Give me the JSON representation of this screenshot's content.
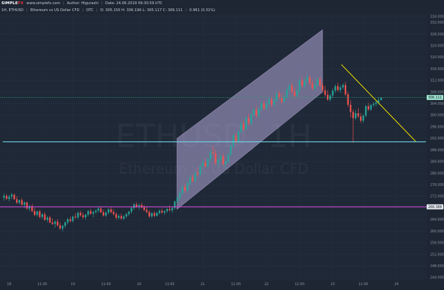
{
  "header": {
    "logo_main": "SIMPLE",
    "logo_fx": "FX",
    "site": "www.simplefx.com",
    "author": "Author: Higurashi",
    "date": "Date: 24.06.2019 09:30:59 UTC"
  },
  "infobar": {
    "timeframe": "1H, ETHUSD",
    "description": "Ethereum vs US Dollar CFD",
    "feed": "OTC",
    "ohlc": "O: 305.150 H: 306.196 L: 305.117 C: 306.111",
    "change": "0.961 (0.31%)"
  },
  "watermark": {
    "symbol": "ETHUSD, 1H",
    "name": "Ethereum vs US Dollar CFD"
  },
  "price_tags": {
    "current": "306.111",
    "support": "268.388"
  },
  "colors": {
    "background": "#1e2633",
    "up_candle": "#26a69a",
    "down_candle": "#ef5350",
    "channel_fill": "#b3a8d9",
    "cyan_line": "#6fd6e9",
    "magenta_line": "#d24cdb",
    "yellow_trendline": "#f2e600",
    "current_price_line": "#2aa37a"
  },
  "chart_data": {
    "type": "candlestick",
    "title": "",
    "symbol": "ETHUSD",
    "timeframe": "1H",
    "y_range": [
      244.0,
      334.0
    ],
    "y_ticks": [
      "334.000",
      "332.000",
      "328.000",
      "324.000",
      "320.000",
      "316.000",
      "312.000",
      "308.000",
      "304.000",
      "300.000",
      "296.000",
      "292.000",
      "288.000",
      "284.000",
      "280.000",
      "276.000",
      "272.000",
      "268.000",
      "264.000",
      "260.000",
      "256.000",
      "252.000",
      "248.000",
      "244.000"
    ],
    "x_ticks": [
      "18",
      "11:00",
      "19",
      "11:00",
      "20",
      "11:00",
      "21",
      "11:00",
      "22",
      "11:00",
      "23",
      "11:00",
      "24"
    ],
    "price_levels": [
      {
        "name": "current price",
        "value": 306.111
      },
      {
        "name": "support",
        "value": 268.388
      },
      {
        "name": "resistance",
        "value": 290.8
      }
    ],
    "channel": {
      "lower_start": 267.5,
      "lower_end": 308.0,
      "upper_start": 292.0,
      "upper_end": 329.5
    },
    "trendline": {
      "start": 317.5,
      "end": 291.0
    },
    "ohlc": [
      [
        271.5,
        273.0,
        270.5,
        272.2
      ],
      [
        272.2,
        272.8,
        270.9,
        271.1
      ],
      [
        271.1,
        272.5,
        270.3,
        271.9
      ],
      [
        271.9,
        273.2,
        271.0,
        272.6
      ],
      [
        272.6,
        273.0,
        270.8,
        271.0
      ],
      [
        271.0,
        272.1,
        269.4,
        269.8
      ],
      [
        269.8,
        271.0,
        269.2,
        270.7
      ],
      [
        270.7,
        271.4,
        268.8,
        269.1
      ],
      [
        269.1,
        270.3,
        268.0,
        269.9
      ],
      [
        269.9,
        270.2,
        267.3,
        267.8
      ],
      [
        267.8,
        269.1,
        266.9,
        268.6
      ],
      [
        268.6,
        269.4,
        266.5,
        266.9
      ],
      [
        266.9,
        268.0,
        265.2,
        265.6
      ],
      [
        265.6,
        267.1,
        265.0,
        266.8
      ],
      [
        266.8,
        267.4,
        264.4,
        264.9
      ],
      [
        264.9,
        266.3,
        264.2,
        265.8
      ],
      [
        265.8,
        266.6,
        263.5,
        263.9
      ],
      [
        263.9,
        265.2,
        263.1,
        264.7
      ],
      [
        264.7,
        265.3,
        262.6,
        263.0
      ],
      [
        263.0,
        264.4,
        262.1,
        262.5
      ],
      [
        262.5,
        263.7,
        261.2,
        263.3
      ],
      [
        263.3,
        264.1,
        261.5,
        262.0
      ],
      [
        262.0,
        263.0,
        260.4,
        260.9
      ],
      [
        260.9,
        262.2,
        259.9,
        261.8
      ],
      [
        261.8,
        263.4,
        261.1,
        263.0
      ],
      [
        263.0,
        264.6,
        262.4,
        264.1
      ],
      [
        264.1,
        265.0,
        263.0,
        263.5
      ],
      [
        263.5,
        265.4,
        263.0,
        265.0
      ],
      [
        265.0,
        266.2,
        264.3,
        264.7
      ],
      [
        264.7,
        266.8,
        264.1,
        266.3
      ],
      [
        266.3,
        267.1,
        265.0,
        265.5
      ],
      [
        265.5,
        266.4,
        264.2,
        264.8
      ],
      [
        264.8,
        266.0,
        264.0,
        265.7
      ],
      [
        265.7,
        267.3,
        265.1,
        266.9
      ],
      [
        266.9,
        267.7,
        265.6,
        266.0
      ],
      [
        266.0,
        267.0,
        264.8,
        266.6
      ],
      [
        266.6,
        267.5,
        265.9,
        267.1
      ],
      [
        267.1,
        268.3,
        266.4,
        267.8
      ],
      [
        267.8,
        268.6,
        266.2,
        266.5
      ],
      [
        266.5,
        267.4,
        265.0,
        265.4
      ],
      [
        265.4,
        266.8,
        264.9,
        266.4
      ],
      [
        266.4,
        267.9,
        265.8,
        267.5
      ],
      [
        267.5,
        268.2,
        266.1,
        266.6
      ],
      [
        266.6,
        267.6,
        265.4,
        265.9
      ],
      [
        265.9,
        266.5,
        264.0,
        264.6
      ],
      [
        264.6,
        265.8,
        264.0,
        265.2
      ],
      [
        265.2,
        266.0,
        263.9,
        264.3
      ],
      [
        264.3,
        265.6,
        263.8,
        265.1
      ],
      [
        265.1,
        266.3,
        264.5,
        265.9
      ],
      [
        265.9,
        267.0,
        265.2,
        266.7
      ],
      [
        266.7,
        268.5,
        266.0,
        268.0
      ],
      [
        268.0,
        269.8,
        267.3,
        269.2
      ],
      [
        269.2,
        270.0,
        267.9,
        268.4
      ],
      [
        268.4,
        269.5,
        267.4,
        269.0
      ],
      [
        269.0,
        269.9,
        267.9,
        268.2
      ],
      [
        268.2,
        269.0,
        266.8,
        267.3
      ],
      [
        267.3,
        268.4,
        266.1,
        266.6
      ],
      [
        266.6,
        267.2,
        264.6,
        265.1
      ],
      [
        265.1,
        266.6,
        264.5,
        266.2
      ],
      [
        266.2,
        266.9,
        264.8,
        265.3
      ],
      [
        265.3,
        266.7,
        264.9,
        266.3
      ],
      [
        266.3,
        267.5,
        265.7,
        267.0
      ],
      [
        267.0,
        267.8,
        266.0,
        266.4
      ],
      [
        266.4,
        267.2,
        265.6,
        266.9
      ],
      [
        266.9,
        268.1,
        266.3,
        267.6
      ],
      [
        267.6,
        268.8,
        266.8,
        267.2
      ],
      [
        267.2,
        268.2,
        266.3,
        268.0
      ],
      [
        268.0,
        270.6,
        267.5,
        270.2
      ],
      [
        270.2,
        272.0,
        269.4,
        271.5
      ],
      [
        271.5,
        273.6,
        270.8,
        273.2
      ],
      [
        273.2,
        275.8,
        272.5,
        275.3
      ],
      [
        275.3,
        276.4,
        273.2,
        273.9
      ],
      [
        273.9,
        276.9,
        273.2,
        276.5
      ],
      [
        276.5,
        279.2,
        275.8,
        278.6
      ],
      [
        278.6,
        279.5,
        276.8,
        277.3
      ],
      [
        277.3,
        280.5,
        276.9,
        280.0
      ],
      [
        280.0,
        281.9,
        278.9,
        279.5
      ],
      [
        279.5,
        283.0,
        278.8,
        282.4
      ],
      [
        282.4,
        284.6,
        281.3,
        283.7
      ],
      [
        283.7,
        285.0,
        281.9,
        282.3
      ],
      [
        282.3,
        285.5,
        281.5,
        284.9
      ],
      [
        284.9,
        287.9,
        284.0,
        287.2
      ],
      [
        287.2,
        289.4,
        286.2,
        286.8
      ],
      [
        286.8,
        288.1,
        282.7,
        283.5
      ],
      [
        283.5,
        285.2,
        282.0,
        284.6
      ],
      [
        284.6,
        286.4,
        283.6,
        285.8
      ],
      [
        285.8,
        286.9,
        282.8,
        283.1
      ],
      [
        283.1,
        284.5,
        281.6,
        284.0
      ],
      [
        284.0,
        286.9,
        283.3,
        286.5
      ],
      [
        286.5,
        290.0,
        285.9,
        289.4
      ],
      [
        289.4,
        293.6,
        288.6,
        293.0
      ],
      [
        293.0,
        293.9,
        290.1,
        290.8
      ],
      [
        290.8,
        294.8,
        290.2,
        294.3
      ],
      [
        294.3,
        297.7,
        293.6,
        297.1
      ],
      [
        297.1,
        298.2,
        294.5,
        295.2
      ],
      [
        295.2,
        299.6,
        294.6,
        299.0
      ],
      [
        299.0,
        300.4,
        296.6,
        297.2
      ],
      [
        297.2,
        300.6,
        296.8,
        300.1
      ],
      [
        300.1,
        302.6,
        299.4,
        301.9
      ],
      [
        301.9,
        303.2,
        299.1,
        299.8
      ],
      [
        299.8,
        302.7,
        299.0,
        302.2
      ],
      [
        302.2,
        304.9,
        301.3,
        304.1
      ],
      [
        304.1,
        305.0,
        301.6,
        302.3
      ],
      [
        302.3,
        304.7,
        301.7,
        304.0
      ],
      [
        304.0,
        306.2,
        303.1,
        305.5
      ],
      [
        305.5,
        306.4,
        302.9,
        303.6
      ],
      [
        303.6,
        305.9,
        303.1,
        305.2
      ],
      [
        305.2,
        308.1,
        304.5,
        307.4
      ],
      [
        307.4,
        308.6,
        305.4,
        306.0
      ],
      [
        306.0,
        307.6,
        304.0,
        304.6
      ],
      [
        304.6,
        306.9,
        304.2,
        306.3
      ],
      [
        306.3,
        309.4,
        305.7,
        308.8
      ],
      [
        308.8,
        310.9,
        307.9,
        310.2
      ],
      [
        310.2,
        311.2,
        307.5,
        308.1
      ],
      [
        308.1,
        309.5,
        305.9,
        306.7
      ],
      [
        306.7,
        309.1,
        306.1,
        308.6
      ],
      [
        308.6,
        312.8,
        307.9,
        312.0
      ],
      [
        312.0,
        313.2,
        309.5,
        310.1
      ],
      [
        310.1,
        312.5,
        309.3,
        311.8
      ],
      [
        311.8,
        314.3,
        310.7,
        313.1
      ],
      [
        313.1,
        313.9,
        310.4,
        311.0
      ],
      [
        311.0,
        312.4,
        308.6,
        309.2
      ],
      [
        309.2,
        311.1,
        308.4,
        310.5
      ],
      [
        310.5,
        313.0,
        309.8,
        312.4
      ],
      [
        312.4,
        313.2,
        309.7,
        310.3
      ],
      [
        310.3,
        311.5,
        307.9,
        308.6
      ],
      [
        308.6,
        310.1,
        306.5,
        307.1
      ],
      [
        307.1,
        308.6,
        304.9,
        305.4
      ],
      [
        305.4,
        307.4,
        304.7,
        306.8
      ],
      [
        306.8,
        309.2,
        306.0,
        308.5
      ],
      [
        308.5,
        310.6,
        307.7,
        310.0
      ],
      [
        310.0,
        311.2,
        308.1,
        308.7
      ],
      [
        308.7,
        310.4,
        307.8,
        309.6
      ],
      [
        309.6,
        311.0,
        308.9,
        310.4
      ],
      [
        310.4,
        311.5,
        306.6,
        307.2
      ],
      [
        307.2,
        308.1,
        302.8,
        303.6
      ],
      [
        303.6,
        305.2,
        299.2,
        301.1
      ],
      [
        301.1,
        302.0,
        290.5,
        299.0
      ],
      [
        299.0,
        301.8,
        298.3,
        300.7
      ],
      [
        300.7,
        302.5,
        298.9,
        299.6
      ],
      [
        299.6,
        300.8,
        297.3,
        298.1
      ],
      [
        298.1,
        300.4,
        297.4,
        299.9
      ],
      [
        299.9,
        303.6,
        299.2,
        303.1
      ],
      [
        303.1,
        304.3,
        301.4,
        302.0
      ],
      [
        302.0,
        303.8,
        301.5,
        303.5
      ],
      [
        303.5,
        304.6,
        302.9,
        303.9
      ],
      [
        303.9,
        305.0,
        303.1,
        304.4
      ],
      [
        304.4,
        306.2,
        303.7,
        305.2
      ],
      [
        305.2,
        306.2,
        305.1,
        306.1
      ]
    ]
  }
}
